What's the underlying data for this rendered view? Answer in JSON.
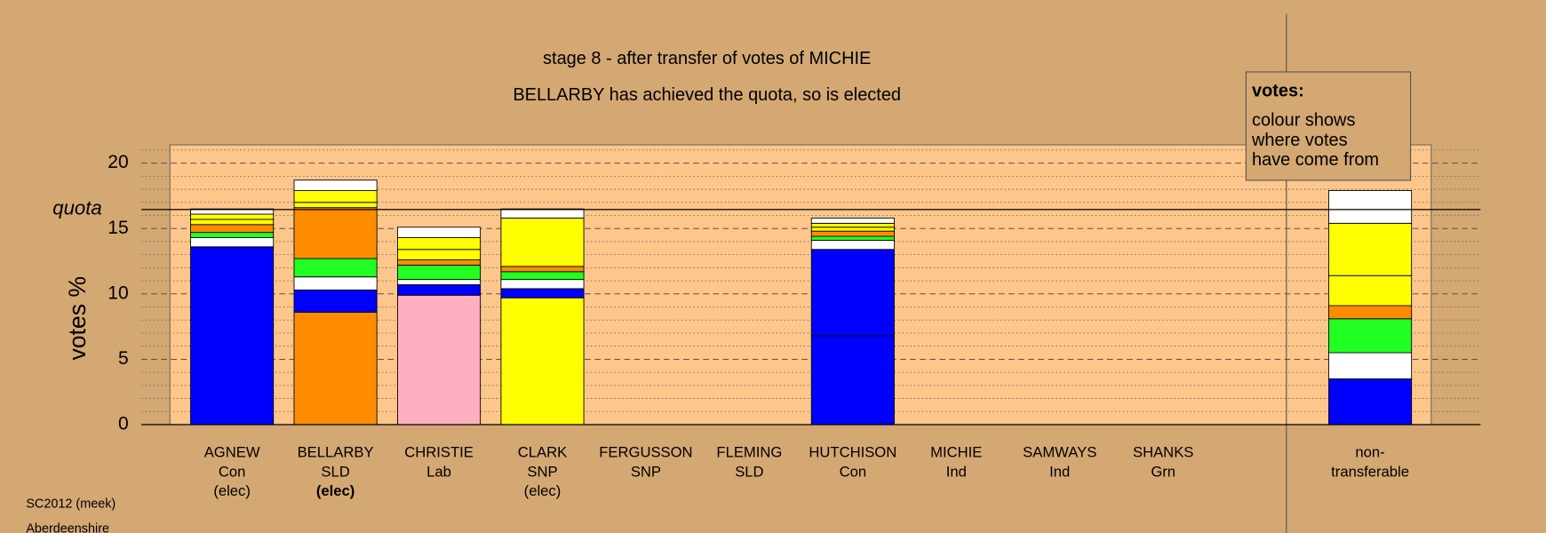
{
  "chart_data": {
    "type": "stacked-bar",
    "title": "stage 8 - after transfer of votes of MICHIE",
    "subtitle": "BELLARBY has achieved the quota, so is elected",
    "ylabel": "votes %",
    "ylim": [
      0,
      21.4
    ],
    "yticks": [
      0,
      5,
      10,
      15,
      20
    ],
    "minor_yticks": [
      1,
      2,
      3,
      4,
      6,
      7,
      8,
      9,
      11,
      12,
      13,
      14,
      16,
      17,
      18,
      19,
      21
    ],
    "quota": 16.45,
    "quota_label": "quota",
    "highlight_index": 1,
    "bars": [
      {
        "name": "AGNEW",
        "party": "Con",
        "status": "(elec)",
        "segments": [
          {
            "color": "#0000ff",
            "value": 13.6
          },
          {
            "color": "#ffffff",
            "value": 0.7
          },
          {
            "color": "#22ff22",
            "value": 0.4
          },
          {
            "color": "#ff8c00",
            "value": 0.6
          },
          {
            "color": "#ffff00",
            "value": 0.4
          },
          {
            "color": "#ffff00",
            "value": 0.4
          },
          {
            "color": "#ffffff",
            "value": 0.4
          }
        ]
      },
      {
        "name": "BELLARBY",
        "party": "SLD",
        "status": "(elec)",
        "segments": [
          {
            "color": "#ff8c00",
            "value": 8.6
          },
          {
            "color": "#0000ff",
            "value": 1.7
          },
          {
            "color": "#ffffff",
            "value": 1.0
          },
          {
            "color": "#22ff22",
            "value": 1.4
          },
          {
            "color": "#ff8c00",
            "value": 3.9
          },
          {
            "color": "#ffff00",
            "value": 0.4
          },
          {
            "color": "#ffff00",
            "value": 0.9
          },
          {
            "color": "#ffffff",
            "value": 0.8
          }
        ]
      },
      {
        "name": "CHRISTIE",
        "party": "Lab",
        "status": null,
        "segments": [
          {
            "color": "#ffb0c0",
            "value": 9.9
          },
          {
            "color": "#0000ff",
            "value": 0.8
          },
          {
            "color": "#ffffff",
            "value": 0.4
          },
          {
            "color": "#22ff22",
            "value": 1.1
          },
          {
            "color": "#ff8c00",
            "value": 0.4
          },
          {
            "color": "#ffff00",
            "value": 0.8
          },
          {
            "color": "#ffff00",
            "value": 0.9
          },
          {
            "color": "#ffffff",
            "value": 0.8
          }
        ]
      },
      {
        "name": "CLARK",
        "party": "SNP",
        "status": "(elec)",
        "segments": [
          {
            "color": "#ffff00",
            "value": 9.7
          },
          {
            "color": "#0000ff",
            "value": 0.7
          },
          {
            "color": "#ffffff",
            "value": 0.7
          },
          {
            "color": "#22ff22",
            "value": 0.6
          },
          {
            "color": "#ff8c00",
            "value": 0.4
          },
          {
            "color": "#ffff00",
            "value": 3.7
          },
          {
            "color": "#ffffff",
            "value": 0.7
          }
        ]
      },
      {
        "name": "FERGUSSON",
        "party": "SNP",
        "status": null,
        "segments": [
          {
            "color": "#ffffff",
            "value": 0
          }
        ]
      },
      {
        "name": "FLEMING",
        "party": "SLD",
        "status": null,
        "segments": [
          {
            "color": "#ffffff",
            "value": 0
          }
        ]
      },
      {
        "name": "HUTCHISON",
        "party": "Con",
        "status": null,
        "segments": [
          {
            "color": "#0000ff",
            "value": 6.8
          },
          {
            "color": "#0000ff",
            "value": 6.6
          },
          {
            "color": "#ffffff",
            "value": 0.7
          },
          {
            "color": "#22ff22",
            "value": 0.3
          },
          {
            "color": "#ff8c00",
            "value": 0.4
          },
          {
            "color": "#ffff00",
            "value": 0.3
          },
          {
            "color": "#ffff00",
            "value": 0.3
          },
          {
            "color": "#ffffff",
            "value": 0.4
          }
        ]
      },
      {
        "name": "MICHIE",
        "party": "Ind",
        "status": null,
        "segments": [
          {
            "color": "#ffffff",
            "value": 0
          }
        ]
      },
      {
        "name": "SAMWAYS",
        "party": "Ind",
        "status": null,
        "segments": [
          {
            "color": "#ffffff",
            "value": 0
          }
        ]
      },
      {
        "name": "SHANKS",
        "party": "Grn",
        "status": null,
        "segments": [
          {
            "color": "#ffffff",
            "value": 0
          }
        ]
      }
    ],
    "nontransferable": {
      "label": [
        "non-",
        "transferable"
      ],
      "segments": [
        {
          "color": "#0000ff",
          "value": 3.5
        },
        {
          "color": "#ffffff",
          "value": 2.0
        },
        {
          "color": "#22ff22",
          "value": 2.6
        },
        {
          "color": "#ff8c00",
          "value": 1.0
        },
        {
          "color": "#ffff00",
          "value": 2.3
        },
        {
          "color": "#ffff00",
          "value": 4.0
        },
        {
          "color": "#ffffff",
          "value": 2.5
        }
      ]
    },
    "legend": {
      "title": "votes:",
      "lines": [
        "colour shows",
        "where votes",
        "have come from"
      ]
    },
    "footer": [
      "SC2012 (meek)",
      "Aberdeenshire"
    ]
  }
}
